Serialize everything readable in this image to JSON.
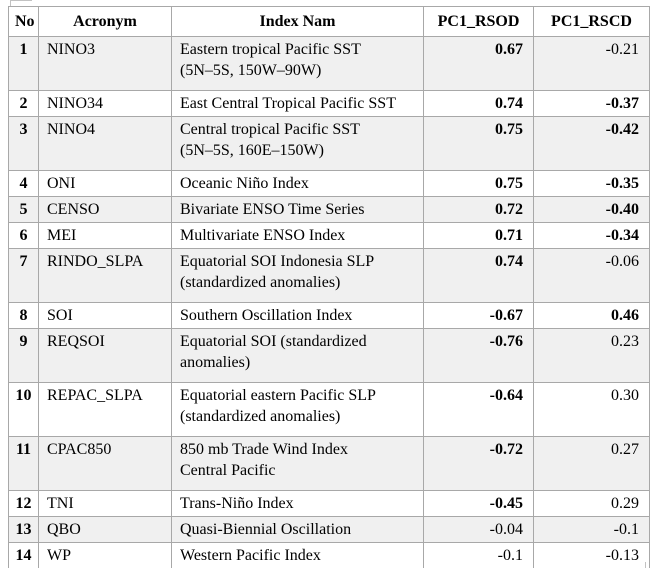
{
  "table": {
    "columns": [
      {
        "key": "no",
        "label": "No"
      },
      {
        "key": "acronym",
        "label": "Acronym"
      },
      {
        "key": "name",
        "label": "Index Nam"
      },
      {
        "key": "pc1_rsod",
        "label": "PC1_RSOD"
      },
      {
        "key": "pc1_rscd",
        "label": "PC1_RSCD"
      }
    ],
    "rows": [
      {
        "no": "1",
        "acronym": "NINO3",
        "name": "Eastern tropical Pacific SST\n(5N–5S, 150W–90W)",
        "pc1_rsod": "0.67",
        "rsod_bold": true,
        "pc1_rscd": "-0.21",
        "rscd_bold": false
      },
      {
        "no": "2",
        "acronym": "NINO34",
        "name": "East Central Tropical Pacific SST",
        "pc1_rsod": "0.74",
        "rsod_bold": true,
        "pc1_rscd": "-0.37",
        "rscd_bold": true
      },
      {
        "no": "3",
        "acronym": "NINO4",
        "name": "Central tropical Pacific SST\n(5N–5S, 160E–150W)",
        "pc1_rsod": "0.75",
        "rsod_bold": true,
        "pc1_rscd": "-0.42",
        "rscd_bold": true
      },
      {
        "no": "4",
        "acronym": "ONI",
        "name": "Oceanic Niño Index",
        "pc1_rsod": "0.75",
        "rsod_bold": true,
        "pc1_rscd": "-0.35",
        "rscd_bold": true
      },
      {
        "no": "5",
        "acronym": "CENSO",
        "name": "Bivariate ENSO Time Series",
        "pc1_rsod": "0.72",
        "rsod_bold": true,
        "pc1_rscd": "-0.40",
        "rscd_bold": true
      },
      {
        "no": "6",
        "acronym": "MEI",
        "name": "Multivariate ENSO Index",
        "pc1_rsod": "0.71",
        "rsod_bold": true,
        "pc1_rscd": "-0.34",
        "rscd_bold": true
      },
      {
        "no": "7",
        "acronym": "RINDO_SLPA",
        "name": "Equatorial SOI Indonesia SLP\n(standardized anomalies)",
        "pc1_rsod": "0.74",
        "rsod_bold": true,
        "pc1_rscd": "-0.06",
        "rscd_bold": false
      },
      {
        "no": "8",
        "acronym": "SOI",
        "name": "Southern Oscillation Index",
        "pc1_rsod": "-0.67",
        "rsod_bold": true,
        "pc1_rscd": "0.46",
        "rscd_bold": true
      },
      {
        "no": "9",
        "acronym": "REQSOI",
        "name": "Equatorial SOI (standardized\nanomalies)",
        "pc1_rsod": "-0.76",
        "rsod_bold": true,
        "pc1_rscd": "0.23",
        "rscd_bold": false
      },
      {
        "no": "10",
        "acronym": "REPAC_SLPA",
        "name": "Equatorial eastern Pacific SLP\n(standardized anomalies)",
        "pc1_rsod": "-0.64",
        "rsod_bold": true,
        "pc1_rscd": "0.30",
        "rscd_bold": false
      },
      {
        "no": "11",
        "acronym": "CPAC850",
        "name": "850 mb Trade Wind Index\nCentral Pacific",
        "pc1_rsod": "-0.72",
        "rsod_bold": true,
        "pc1_rscd": "0.27",
        "rscd_bold": false
      },
      {
        "no": "12",
        "acronym": "TNI",
        "name": "Trans-Niño Index",
        "pc1_rsod": "-0.45",
        "rsod_bold": true,
        "pc1_rscd": "0.29",
        "rscd_bold": false
      },
      {
        "no": "13",
        "acronym": "QBO",
        "name": "Quasi-Biennial Oscillation",
        "pc1_rsod": "-0.04",
        "rsod_bold": false,
        "pc1_rscd": "-0.1",
        "rscd_bold": false
      },
      {
        "no": "14",
        "acronym": "WP",
        "name": "Western Pacific Index",
        "pc1_rsod": "-0.1",
        "rsod_bold": false,
        "pc1_rscd": "-0.13",
        "rscd_bold": false
      }
    ]
  },
  "colors": {
    "stripe": "#f0f0f0",
    "border": "#a8a8a8",
    "text": "#000000",
    "background": "#ffffff"
  }
}
